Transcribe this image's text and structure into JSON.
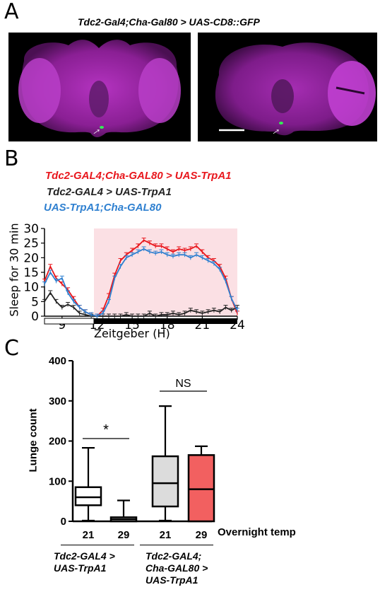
{
  "panel_a": {
    "letter": "A",
    "title": "Tdc2-Gal4;Cha-Gal80 > UAS-CD8::GFP",
    "images": [
      {
        "arrow": "→",
        "has_scale_bar": false
      },
      {
        "arrow": "→",
        "has_scale_bar": true
      }
    ],
    "colors": {
      "neuropil": "#cc33cc",
      "gfp": "#22dd44"
    }
  },
  "panel_b": {
    "letter": "B",
    "legend": [
      {
        "label": "Tdc2-GAL4;Cha-GAL80 > UAS-TrpA1",
        "color": "#e8161c"
      },
      {
        "label": "Tdc2-GAL4 > UAS-TrpA1",
        "color": "#222222"
      },
      {
        "label": "UAS-TrpA1;Cha-GAL80",
        "color": "#2f80d0"
      }
    ],
    "ylabel": "Sleep for 30 min",
    "xlabel": "Zeitgeber (H)"
  },
  "panel_c": {
    "letter": "C",
    "ylabel": "Lunge count",
    "xlabel": "Overnight temp",
    "significance": [
      "*",
      "NS"
    ],
    "group_labels": [
      [
        "Tdc2-GAL4 >",
        "UAS-TrpA1"
      ],
      [
        "Tdc2-GAL4;",
        "Cha-GAL80 >",
        "UAS-TrpA1"
      ]
    ]
  },
  "chart_data": [
    {
      "type": "line",
      "x": [
        7.5,
        8,
        8.5,
        9,
        9.5,
        10,
        10.5,
        11,
        11.5,
        12,
        12.5,
        13,
        13.5,
        14,
        14.5,
        15,
        15.5,
        16,
        16.5,
        17,
        17.5,
        18,
        18.5,
        19,
        19.5,
        20,
        20.5,
        21,
        21.5,
        22,
        22.5,
        23,
        23.5,
        24
      ],
      "xticks": [
        9,
        12,
        15,
        18,
        21,
        24
      ],
      "yticks": [
        0,
        5,
        10,
        15,
        20,
        25,
        30
      ],
      "xlim": [
        7.5,
        24
      ],
      "ylim": [
        0,
        30
      ],
      "shaded_region": [
        12,
        24
      ],
      "light_dark_bar": {
        "light": [
          7.5,
          12
        ],
        "dark": [
          12,
          24
        ]
      },
      "ylabel": "Sleep for 30 min",
      "xlabel": "Zeitgeber (H)",
      "series": [
        {
          "name": "Tdc2-GAL4;Cha-GAL80 > UAS-TrpA1",
          "color": "#e8161c",
          "values": [
            12,
            17,
            13,
            11,
            9,
            6,
            3,
            1.5,
            0.5,
            0,
            2,
            7,
            14,
            19,
            21,
            22.5,
            24,
            26,
            25,
            24,
            24,
            23,
            22,
            23,
            22.5,
            23,
            24,
            22,
            20,
            19,
            17,
            13,
            6,
            1
          ]
        },
        {
          "name": "Tdc2-GAL4 > UAS-TrpA1",
          "color": "#222222",
          "values": [
            5,
            8,
            5,
            3,
            4,
            3,
            1,
            0.5,
            0,
            0,
            0,
            0,
            0,
            0,
            0.5,
            0,
            0,
            0,
            1,
            0,
            0.5,
            0.5,
            1,
            0.5,
            1,
            2,
            1.5,
            1,
            1.5,
            2,
            1.5,
            3,
            2,
            3
          ]
        },
        {
          "name": "UAS-TrpA1;Cha-GAL80",
          "color": "#2f80d0",
          "values": [
            11,
            15,
            12,
            13,
            8,
            5,
            3,
            1.5,
            0.5,
            0,
            1,
            5,
            13,
            17,
            20,
            21,
            22,
            23,
            22,
            21.5,
            22,
            21,
            20.5,
            21,
            21,
            20,
            21,
            20,
            19,
            18,
            16,
            12,
            6,
            2
          ]
        }
      ]
    },
    {
      "type": "box",
      "ylabel": "Lunge count",
      "xlabel": "Overnight temp",
      "ylim": [
        0,
        400
      ],
      "yticks": [
        0,
        100,
        200,
        300,
        400
      ],
      "categories": [
        "21",
        "29",
        "21",
        "29"
      ],
      "boxes": [
        {
          "group": "Tdc2-GAL4 > UAS-TrpA1",
          "temp": "21",
          "min": 0,
          "q1": 40,
          "median": 60,
          "q3": 85,
          "max": 183,
          "fill": "#ffffff"
        },
        {
          "group": "Tdc2-GAL4 > UAS-TrpA1",
          "temp": "29",
          "min": 0,
          "q1": 0,
          "median": 5,
          "q3": 10,
          "max": 52,
          "fill": "#ffffff"
        },
        {
          "group": "Tdc2-GAL4;Cha-GAL80 > UAS-TrpA1",
          "temp": "21",
          "min": 0,
          "q1": 37,
          "median": 95,
          "q3": 162,
          "max": 287,
          "fill": "#dcdcdc"
        },
        {
          "group": "Tdc2-GAL4;Cha-GAL80 > UAS-TrpA1",
          "temp": "29",
          "min": 0,
          "q1": 0,
          "median": 80,
          "q3": 165,
          "max": 187,
          "fill": "#f26060"
        }
      ],
      "annotations": [
        {
          "text": "*",
          "between": [
            0,
            1
          ]
        },
        {
          "text": "NS",
          "between": [
            2,
            3
          ]
        }
      ]
    }
  ]
}
